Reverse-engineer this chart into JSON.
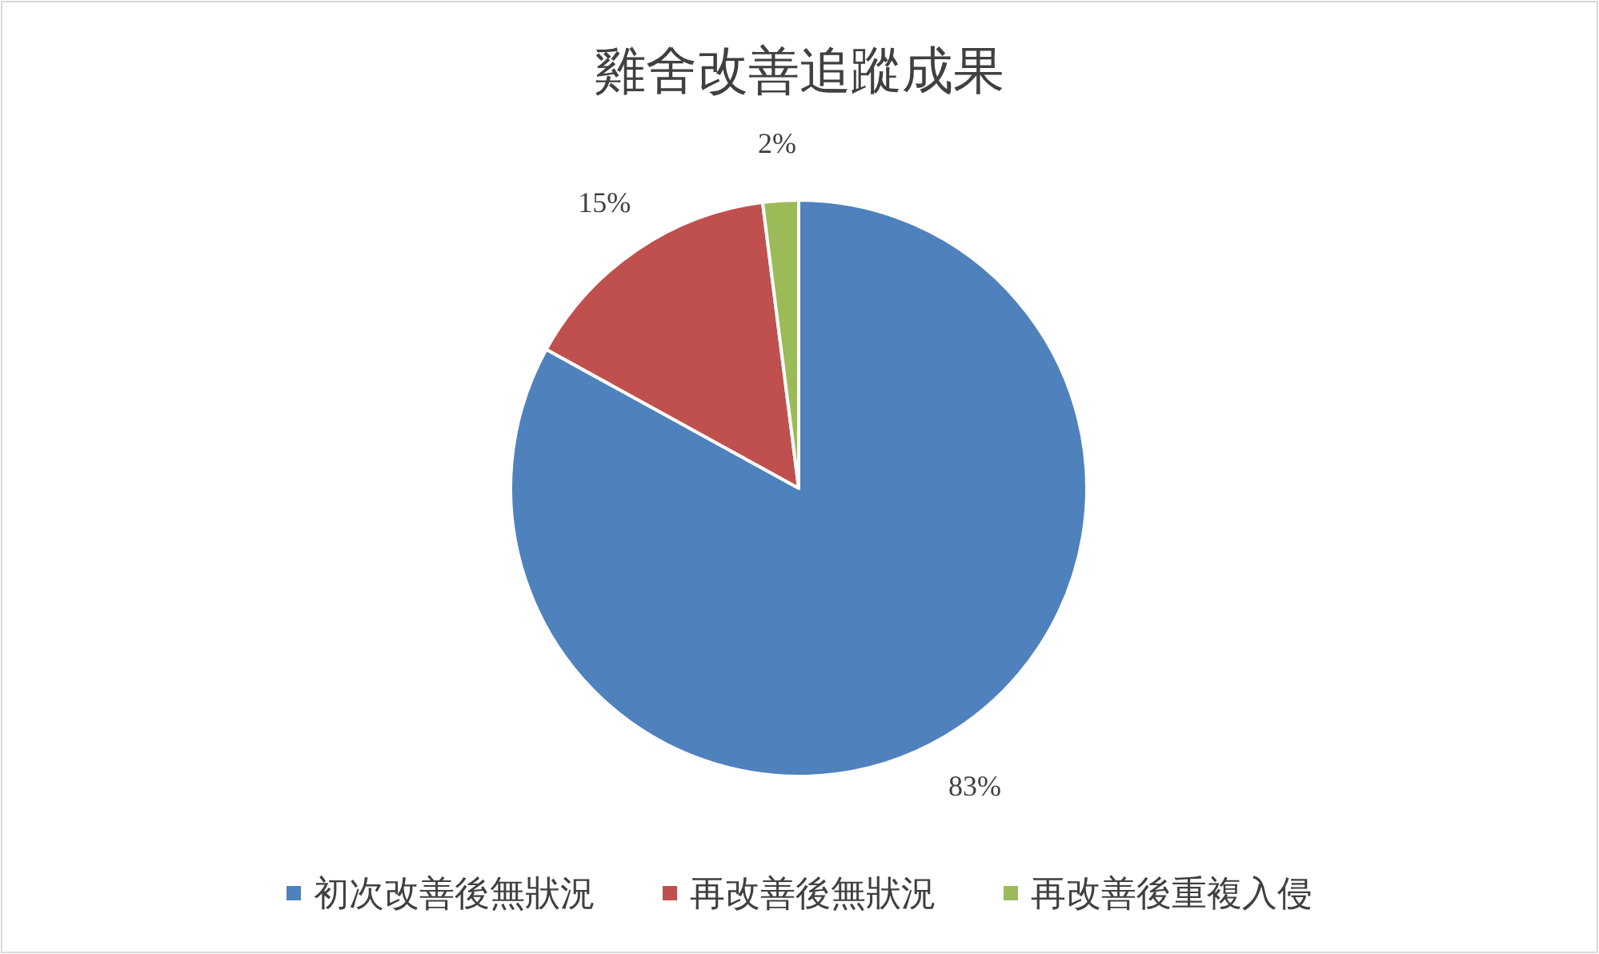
{
  "chart_data": {
    "type": "pie",
    "title": "雞舍改善追蹤成果",
    "categories": [
      "初次改善後無狀況",
      "再改善後無狀況",
      "再改善後重複入侵"
    ],
    "values": [
      83,
      15,
      2
    ],
    "colors": [
      "#4f81bd",
      "#c0504d",
      "#9bbb59"
    ],
    "value_labels": [
      "83%",
      "15%",
      "2%"
    ],
    "legend": "bottom"
  }
}
